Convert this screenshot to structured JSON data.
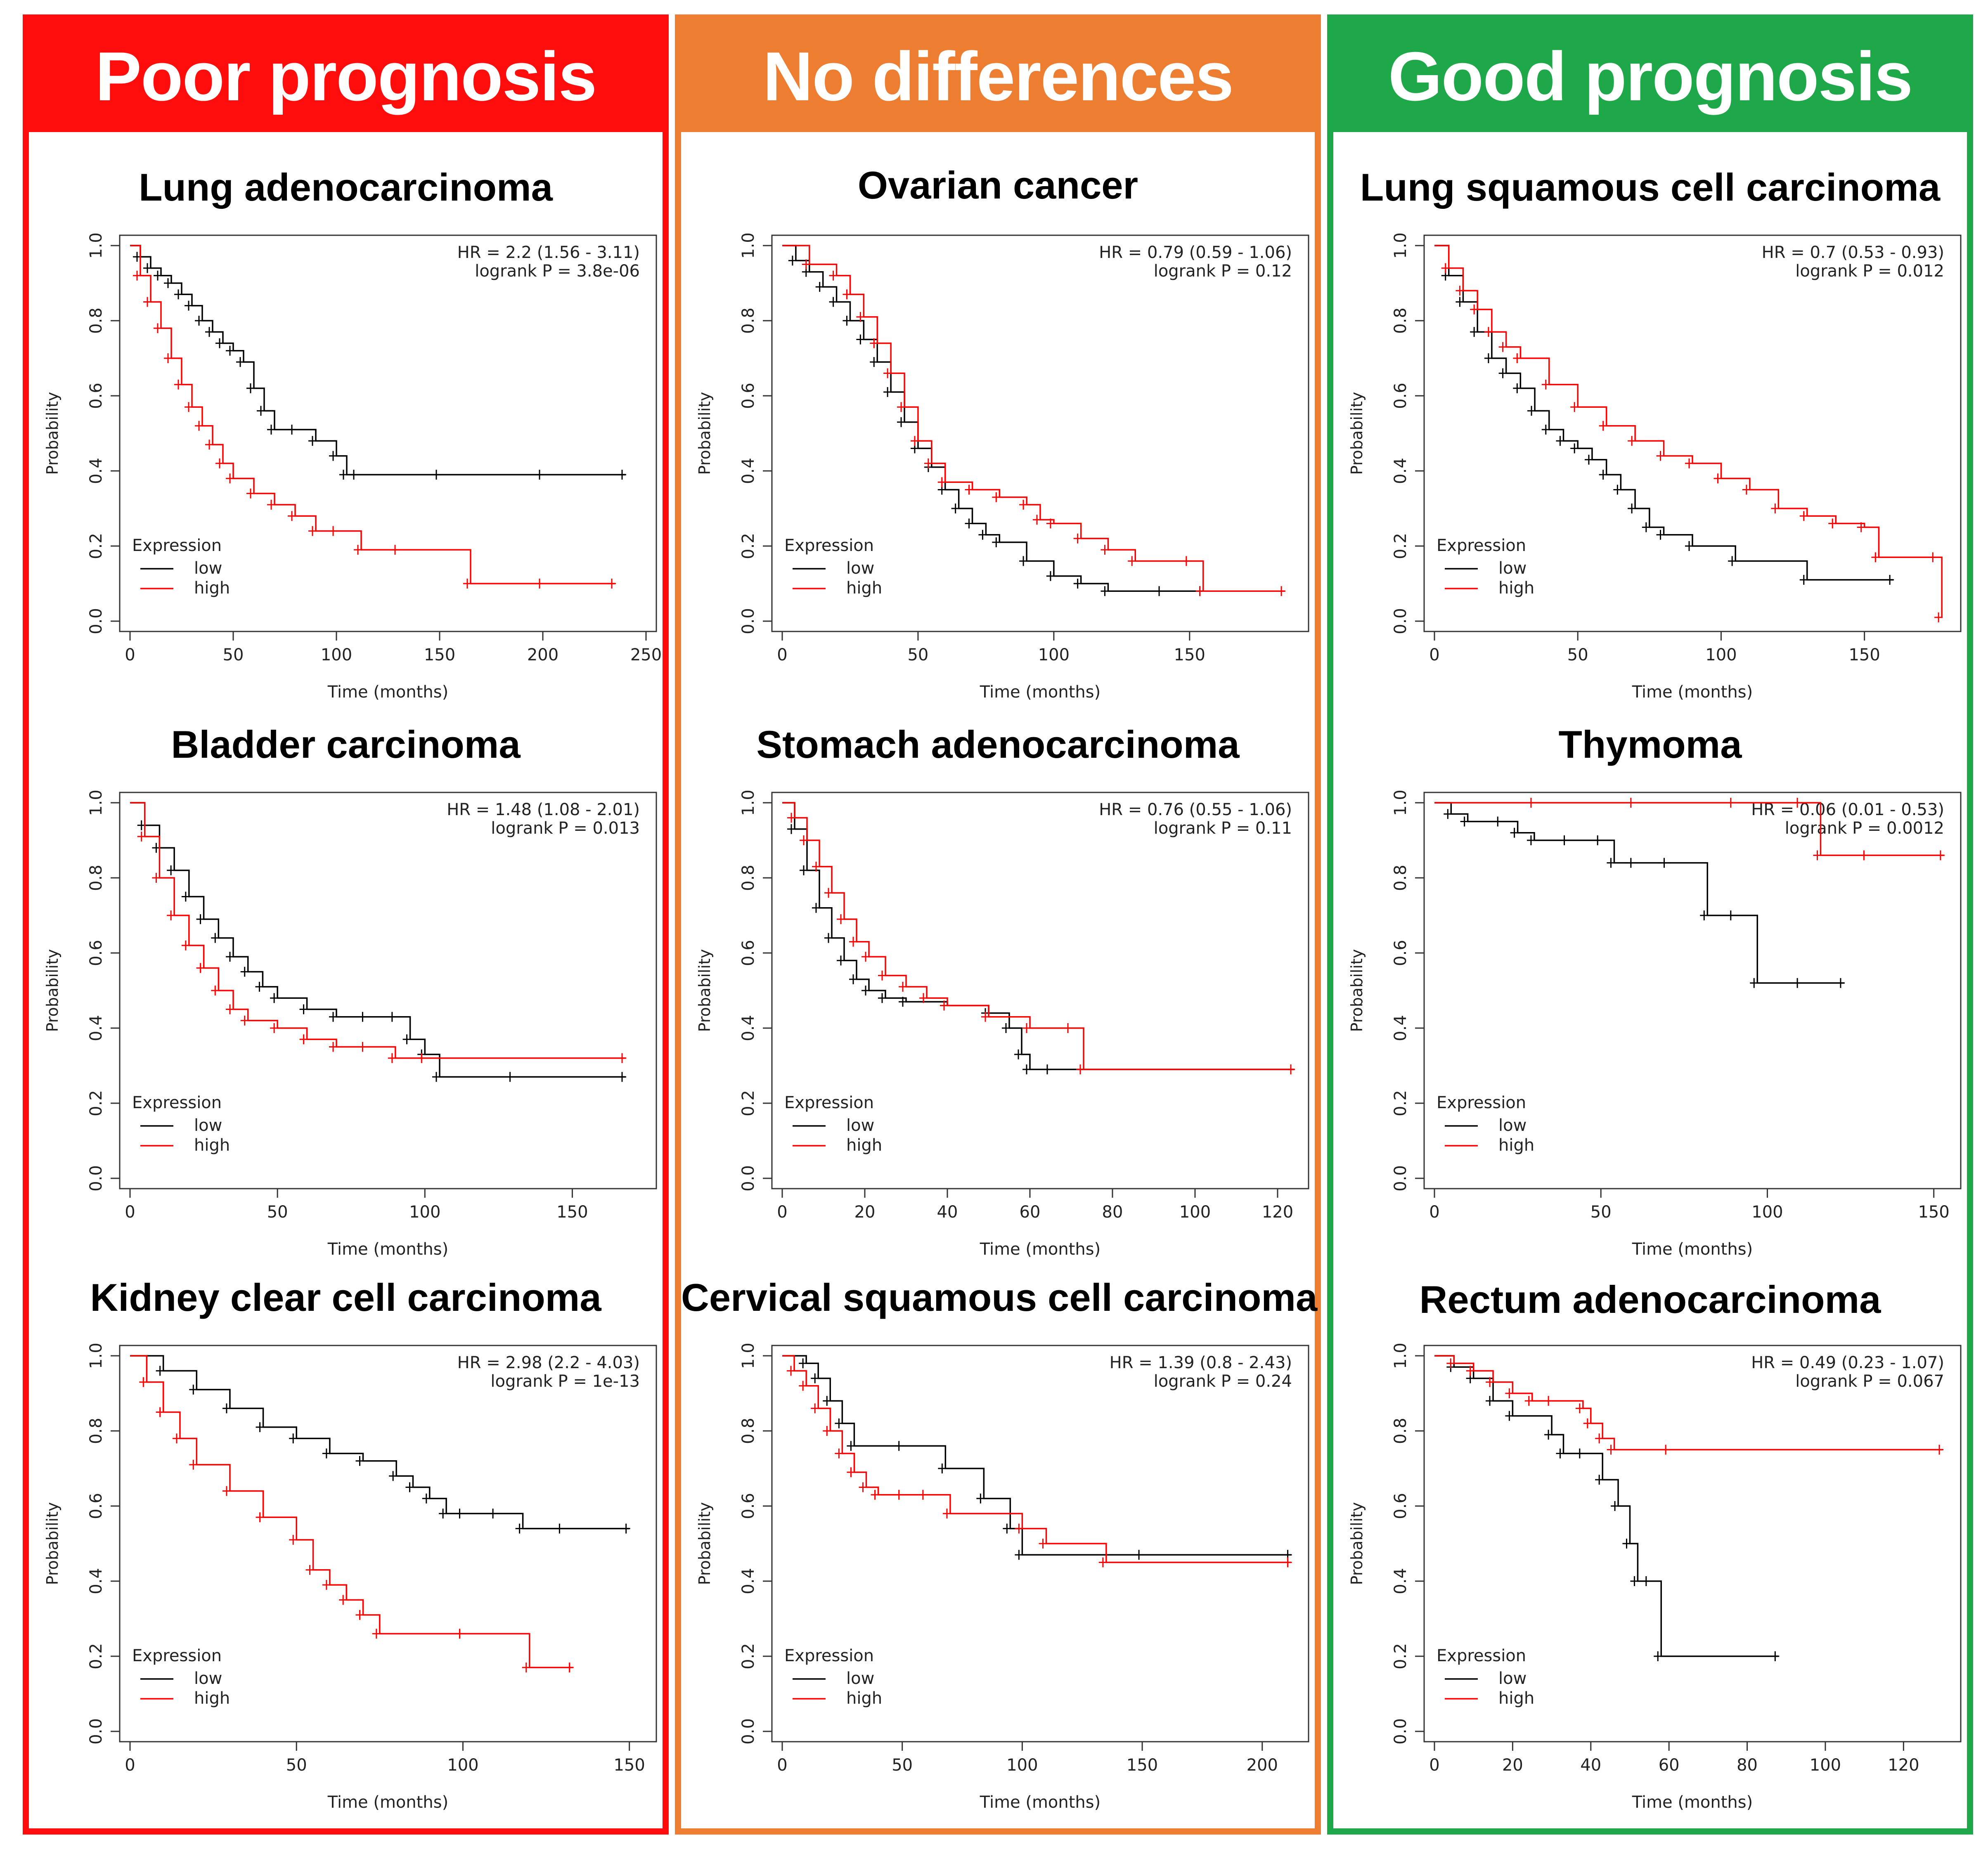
{
  "colors": {
    "low": "#000000",
    "high": "#ff0000",
    "poor": "#ff0d0d",
    "none": "#ed7d31",
    "good": "#1fa84a"
  },
  "columns": [
    {
      "header": "Poor prognosis",
      "color_key": "poor"
    },
    {
      "header": "No differences",
      "color_key": "none"
    },
    {
      "header": "Good prognosis",
      "color_key": "good"
    }
  ],
  "chart_data": [
    {
      "type": "line",
      "title": "Lung adenocarcinoma",
      "hr": "HR = 2.2 (1.56 - 3.11)",
      "pval": "logrank P = 3.8e-06",
      "xlabel": "Time (months)",
      "ylabel": "Probability",
      "xlim": [
        0,
        250
      ],
      "ylim": [
        0,
        1
      ],
      "xticks": [
        0,
        50,
        100,
        150,
        200,
        250
      ],
      "yticks": [
        0.0,
        0.2,
        0.4,
        0.6,
        0.8,
        1.0
      ],
      "legend_title": "Expression",
      "legend": [
        "low",
        "high"
      ],
      "series": [
        {
          "name": "low",
          "x": [
            0,
            5,
            10,
            15,
            20,
            25,
            30,
            35,
            40,
            45,
            50,
            55,
            60,
            65,
            70,
            80,
            90,
            100,
            105,
            110,
            150,
            200,
            240
          ],
          "y": [
            1.0,
            0.97,
            0.94,
            0.92,
            0.9,
            0.87,
            0.84,
            0.8,
            0.77,
            0.74,
            0.72,
            0.69,
            0.62,
            0.56,
            0.51,
            0.51,
            0.48,
            0.44,
            0.39,
            0.39,
            0.39,
            0.39,
            0.39
          ]
        },
        {
          "name": "high",
          "x": [
            0,
            5,
            10,
            15,
            20,
            25,
            30,
            35,
            40,
            45,
            50,
            60,
            70,
            80,
            90,
            100,
            112,
            130,
            165,
            200,
            235
          ],
          "y": [
            1.0,
            0.92,
            0.85,
            0.78,
            0.7,
            0.63,
            0.57,
            0.52,
            0.47,
            0.42,
            0.38,
            0.34,
            0.31,
            0.28,
            0.24,
            0.24,
            0.19,
            0.19,
            0.1,
            0.1,
            0.1
          ]
        }
      ]
    },
    {
      "type": "line",
      "title": "Ovarian cancer",
      "hr": "HR = 0.79 (0.59 - 1.06)",
      "pval": "logrank P = 0.12",
      "xlabel": "Time (months)",
      "ylabel": "Probability",
      "xlim": [
        0,
        190
      ],
      "ylim": [
        0,
        1
      ],
      "xticks": [
        0,
        50,
        100,
        150
      ],
      "yticks": [
        0.0,
        0.2,
        0.4,
        0.6,
        0.8,
        1.0
      ],
      "legend_title": "Expression",
      "legend": [
        "low",
        "high"
      ],
      "series": [
        {
          "name": "low",
          "x": [
            0,
            5,
            10,
            15,
            20,
            25,
            30,
            35,
            40,
            45,
            50,
            55,
            60,
            65,
            70,
            75,
            80,
            90,
            100,
            110,
            120,
            140,
            155
          ],
          "y": [
            1.0,
            0.96,
            0.93,
            0.89,
            0.85,
            0.8,
            0.75,
            0.69,
            0.61,
            0.53,
            0.46,
            0.41,
            0.35,
            0.3,
            0.26,
            0.23,
            0.21,
            0.16,
            0.12,
            0.1,
            0.08,
            0.08,
            0.08
          ]
        },
        {
          "name": "high",
          "x": [
            0,
            10,
            20,
            25,
            30,
            35,
            40,
            45,
            50,
            55,
            60,
            70,
            80,
            90,
            95,
            100,
            110,
            120,
            130,
            150,
            155,
            185
          ],
          "y": [
            1.0,
            0.95,
            0.92,
            0.87,
            0.81,
            0.74,
            0.66,
            0.57,
            0.48,
            0.42,
            0.37,
            0.35,
            0.33,
            0.31,
            0.27,
            0.26,
            0.22,
            0.19,
            0.16,
            0.16,
            0.08,
            0.08
          ]
        }
      ]
    },
    {
      "type": "line",
      "title": "Lung squamous cell carcinoma",
      "hr": "HR = 0.7 (0.53 - 0.93)",
      "pval": "logrank P = 0.012",
      "xlabel": "Time (months)",
      "ylabel": "Probability",
      "xlim": [
        0,
        180
      ],
      "ylim": [
        0,
        1
      ],
      "xticks": [
        0,
        50,
        100,
        150
      ],
      "yticks": [
        0.0,
        0.2,
        0.4,
        0.6,
        0.8,
        1.0
      ],
      "legend_title": "Expression",
      "legend": [
        "low",
        "high"
      ],
      "series": [
        {
          "name": "low",
          "x": [
            0,
            5,
            10,
            15,
            20,
            25,
            30,
            35,
            40,
            45,
            50,
            55,
            60,
            65,
            70,
            75,
            80,
            90,
            105,
            130,
            160
          ],
          "y": [
            1.0,
            0.92,
            0.85,
            0.77,
            0.7,
            0.66,
            0.62,
            0.56,
            0.51,
            0.48,
            0.46,
            0.43,
            0.39,
            0.35,
            0.3,
            0.25,
            0.23,
            0.2,
            0.16,
            0.11,
            0.11
          ]
        },
        {
          "name": "high",
          "x": [
            0,
            5,
            10,
            15,
            20,
            25,
            30,
            40,
            50,
            60,
            70,
            80,
            90,
            100,
            110,
            120,
            130,
            140,
            150,
            155,
            175,
            177
          ],
          "y": [
            1.0,
            0.94,
            0.88,
            0.83,
            0.77,
            0.73,
            0.7,
            0.63,
            0.57,
            0.52,
            0.48,
            0.44,
            0.42,
            0.38,
            0.35,
            0.3,
            0.28,
            0.26,
            0.25,
            0.17,
            0.17,
            0.01
          ]
        }
      ]
    },
    {
      "type": "line",
      "title": "Bladder carcinoma",
      "hr": "HR = 1.48 (1.08 - 2.01)",
      "pval": "logrank P = 0.013",
      "xlabel": "Time (months)",
      "ylabel": "Probability",
      "xlim": [
        0,
        175
      ],
      "ylim": [
        0,
        1
      ],
      "xticks": [
        0,
        50,
        100,
        150
      ],
      "yticks": [
        0.0,
        0.2,
        0.4,
        0.6,
        0.8,
        1.0
      ],
      "legend_title": "Expression",
      "legend": [
        "low",
        "high"
      ],
      "series": [
        {
          "name": "low",
          "x": [
            0,
            5,
            10,
            15,
            20,
            25,
            30,
            35,
            40,
            45,
            50,
            60,
            70,
            80,
            90,
            95,
            100,
            105,
            130,
            168
          ],
          "y": [
            1.0,
            0.94,
            0.88,
            0.82,
            0.75,
            0.69,
            0.64,
            0.59,
            0.55,
            0.51,
            0.48,
            0.45,
            0.43,
            0.43,
            0.43,
            0.37,
            0.33,
            0.27,
            0.27,
            0.27
          ]
        },
        {
          "name": "high",
          "x": [
            0,
            5,
            10,
            15,
            20,
            25,
            30,
            35,
            40,
            50,
            60,
            70,
            80,
            90,
            100,
            168
          ],
          "y": [
            1.0,
            0.91,
            0.8,
            0.7,
            0.62,
            0.56,
            0.5,
            0.45,
            0.42,
            0.4,
            0.37,
            0.35,
            0.35,
            0.32,
            0.32,
            0.32
          ]
        }
      ]
    },
    {
      "type": "line",
      "title": "Stomach adenocarcinoma",
      "hr": "HR = 0.76 (0.55 - 1.06)",
      "pval": "logrank P = 0.11",
      "xlabel": "Time (months)",
      "ylabel": "Probability",
      "xlim": [
        0,
        125
      ],
      "ylim": [
        0,
        1
      ],
      "xticks": [
        0,
        20,
        40,
        60,
        80,
        100,
        120
      ],
      "yticks": [
        0.0,
        0.2,
        0.4,
        0.6,
        0.8,
        1.0
      ],
      "legend_title": "Expression",
      "legend": [
        "low",
        "high"
      ],
      "series": [
        {
          "name": "low",
          "x": [
            0,
            3,
            6,
            9,
            12,
            15,
            18,
            21,
            25,
            30,
            40,
            50,
            55,
            58,
            60,
            65,
            124
          ],
          "y": [
            1.0,
            0.93,
            0.82,
            0.72,
            0.64,
            0.58,
            0.53,
            0.5,
            0.48,
            0.47,
            0.46,
            0.44,
            0.4,
            0.33,
            0.29,
            0.29,
            0.29
          ]
        },
        {
          "name": "high",
          "x": [
            0,
            3,
            6,
            9,
            12,
            15,
            18,
            21,
            25,
            30,
            35,
            40,
            50,
            60,
            70,
            73,
            124
          ],
          "y": [
            1.0,
            0.96,
            0.9,
            0.83,
            0.76,
            0.69,
            0.63,
            0.59,
            0.54,
            0.51,
            0.48,
            0.46,
            0.43,
            0.4,
            0.4,
            0.29,
            0.29
          ]
        }
      ]
    },
    {
      "type": "line",
      "title": "Thymoma",
      "hr": "HR = 0.06 (0.01 - 0.53)",
      "pval": "logrank P = 0.0012",
      "xlabel": "Time (months)",
      "ylabel": "Probability",
      "xlim": [
        0,
        155
      ],
      "ylim": [
        0,
        1
      ],
      "xticks": [
        0,
        50,
        100,
        150
      ],
      "yticks": [
        0.0,
        0.2,
        0.4,
        0.6,
        0.8,
        1.0
      ],
      "legend_title": "Expression",
      "legend": [
        "low",
        "high"
      ],
      "series": [
        {
          "name": "low",
          "x": [
            0,
            5,
            10,
            20,
            25,
            30,
            40,
            50,
            54,
            60,
            70,
            82,
            90,
            97,
            110,
            123
          ],
          "y": [
            1.0,
            0.97,
            0.95,
            0.95,
            0.92,
            0.9,
            0.9,
            0.9,
            0.84,
            0.84,
            0.84,
            0.7,
            0.7,
            0.52,
            0.52,
            0.52
          ]
        },
        {
          "name": "high",
          "x": [
            0,
            30,
            60,
            90,
            110,
            116,
            130,
            153
          ],
          "y": [
            1.0,
            1.0,
            1.0,
            1.0,
            1.0,
            0.86,
            0.86,
            0.86
          ]
        }
      ]
    },
    {
      "type": "line",
      "title": "Kidney clear cell carcinoma",
      "hr": "HR = 2.98 (2.2 - 4.03)",
      "pval": "logrank P = 1e-13",
      "xlabel": "Time (months)",
      "ylabel": "Probability",
      "xlim": [
        0,
        155
      ],
      "ylim": [
        0,
        1
      ],
      "xticks": [
        0,
        50,
        100,
        150
      ],
      "yticks": [
        0.0,
        0.2,
        0.4,
        0.6,
        0.8,
        1.0
      ],
      "legend_title": "Expression",
      "legend": [
        "low",
        "high"
      ],
      "series": [
        {
          "name": "low",
          "x": [
            0,
            10,
            20,
            30,
            40,
            50,
            60,
            70,
            80,
            85,
            90,
            95,
            100,
            110,
            118,
            130,
            150
          ],
          "y": [
            1.0,
            0.96,
            0.91,
            0.86,
            0.81,
            0.78,
            0.74,
            0.72,
            0.68,
            0.65,
            0.62,
            0.58,
            0.58,
            0.58,
            0.54,
            0.54,
            0.54
          ]
        },
        {
          "name": "high",
          "x": [
            0,
            5,
            10,
            15,
            20,
            30,
            40,
            50,
            55,
            60,
            65,
            70,
            75,
            100,
            120,
            133
          ],
          "y": [
            1.0,
            0.93,
            0.85,
            0.78,
            0.71,
            0.64,
            0.57,
            0.51,
            0.43,
            0.39,
            0.35,
            0.31,
            0.26,
            0.26,
            0.17,
            0.17
          ]
        }
      ]
    },
    {
      "type": "line",
      "title": "Cervical squamous cell carcinoma",
      "hr": "HR = 1.39 (0.8 - 2.43)",
      "pval": "logrank P = 0.24",
      "xlabel": "Time (months)",
      "ylabel": "Probability",
      "xlim": [
        0,
        215
      ],
      "ylim": [
        0,
        1
      ],
      "xticks": [
        0,
        50,
        100,
        150,
        200
      ],
      "yticks": [
        0.0,
        0.2,
        0.4,
        0.6,
        0.8,
        1.0
      ],
      "legend_title": "Expression",
      "legend": [
        "low",
        "high"
      ],
      "series": [
        {
          "name": "low",
          "x": [
            0,
            10,
            15,
            20,
            25,
            30,
            50,
            68,
            84,
            95,
            100,
            150,
            212
          ],
          "y": [
            1.0,
            0.98,
            0.94,
            0.88,
            0.82,
            0.76,
            0.76,
            0.7,
            0.62,
            0.54,
            0.47,
            0.47,
            0.47
          ]
        },
        {
          "name": "high",
          "x": [
            0,
            5,
            10,
            15,
            20,
            25,
            30,
            35,
            40,
            50,
            60,
            70,
            100,
            110,
            135,
            212
          ],
          "y": [
            1.0,
            0.96,
            0.92,
            0.86,
            0.8,
            0.74,
            0.69,
            0.65,
            0.63,
            0.63,
            0.63,
            0.58,
            0.54,
            0.5,
            0.45,
            0.45
          ]
        }
      ]
    },
    {
      "type": "line",
      "title": "Rectum adenocarcinoma",
      "hr": "HR = 0.49 (0.23 - 1.07)",
      "pval": "logrank P = 0.067",
      "xlabel": "Time (months)",
      "ylabel": "Probability",
      "xlim": [
        0,
        132
      ],
      "ylim": [
        0,
        1
      ],
      "xticks": [
        0,
        20,
        40,
        60,
        80,
        100,
        120
      ],
      "yticks": [
        0.0,
        0.2,
        0.4,
        0.6,
        0.8,
        1.0
      ],
      "legend_title": "Expression",
      "legend": [
        "low",
        "high"
      ],
      "series": [
        {
          "name": "low",
          "x": [
            0,
            5,
            10,
            15,
            20,
            30,
            33,
            38,
            43,
            47,
            50,
            52,
            55,
            58,
            88
          ],
          "y": [
            1.0,
            0.97,
            0.94,
            0.88,
            0.84,
            0.79,
            0.74,
            0.74,
            0.67,
            0.6,
            0.5,
            0.4,
            0.4,
            0.2,
            0.2
          ]
        },
        {
          "name": "high",
          "x": [
            0,
            5,
            10,
            15,
            20,
            25,
            30,
            38,
            40,
            43,
            46,
            60,
            130
          ],
          "y": [
            1.0,
            0.98,
            0.96,
            0.93,
            0.9,
            0.88,
            0.88,
            0.86,
            0.82,
            0.78,
            0.75,
            0.75,
            0.75
          ]
        }
      ]
    }
  ]
}
